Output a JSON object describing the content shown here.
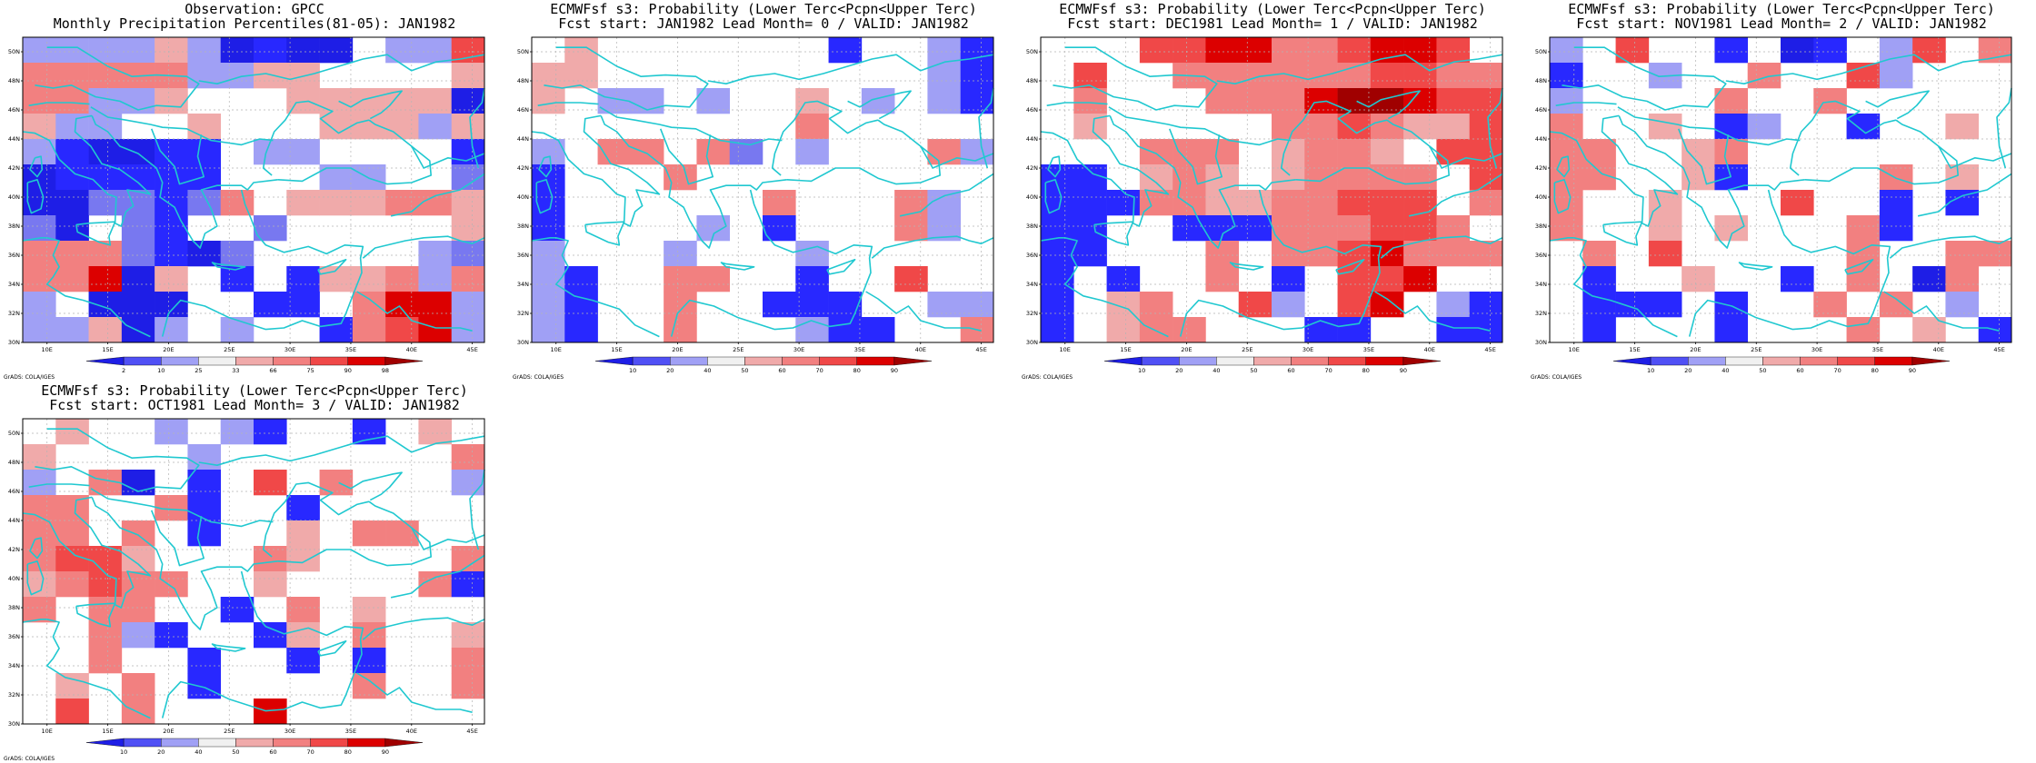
{
  "panels": [
    {
      "title_line1": "Observation: GPCC",
      "title_line2": "Monthly Precipitation Percentiles(81-05): JAN1982",
      "legend": [
        "2",
        "10",
        "25",
        "33",
        "66",
        "75",
        "90",
        "98"
      ],
      "grid": [
        "WWWW3WB1BB.WW5",
        "44444WW33....3",
        "44WW3...33333B",
        "3WW..3...333W3",
        "W1BB11.WW....1",
        "B11111...WW..2",
        "BB22124.333443",
        "2B.21..2.....3",
        "44421B2.....W2",
        "446B3.1.1334W4",
        "W.BBB..11.466W",
        "WW3BW.W..1456W"
      ]
    },
    {
      "title_line1": "ECMWFsf s3: Probability (Lower Terc<Pcpn<Upper Terc)",
      "title_line2": "Fcst start: JAN1982  Lead Month= 0 / VALID: JAN1982",
      "legend": [
        "10",
        "20",
        "40",
        "50",
        "60",
        "70",
        "80",
        "90"
      ],
      "grid": [
        ".3.......1..W1",
        "33..........W1",
        "3.WW.W..3.W.W1",
        "........4.....",
        "W.44.42.W...4W",
        "1...4.........",
        "1......4...4W.",
        "1....W.1...4W.",
        "W...W...W.....",
        "W1..44..1..5..",
        "W1..4..111..WW",
        "W1..4...W11..4"
      ]
    },
    {
      "title_line1": "ECMWFsf s3: Probability (Lower Terc<Pcpn<Upper Terc)",
      "title_line2": "Fcst start: DEC1981  Lead Month= 1 / VALID: JAN1982",
      "legend": [
        "10",
        "20",
        "40",
        "50",
        "60",
        "70",
        "80",
        "90"
      ],
      "grid": [
        "...5566445665.",
        ".5..4444445544",
        ".4...444677655",
        ".3.....4454335",
        "...444.3443.55",
        "11.343.34444.5",
        "111443344555.4",
        "11..111444554.",
        "11...4.4456444",
        "1.1..4.1.556..",
        "1.34..5W.56.W1",
        "1.344...11..11"
      ]
    },
    {
      "title_line1": "ECMWFsf s3: Probability (Lower Terc<Pcpn<Upper Terc)",
      "title_line2": "Fcst start: NOV1981  Lead Month= 2 / VALID: JAN1982",
      "legend": [
        "10",
        "20",
        "40",
        "50",
        "60",
        "70",
        "80",
        "90"
      ],
      "grid": [
        "W.5..1.B1.W5.4",
        "1..W..4..5W...",
        "W....4..4.....",
        "4..3.1W..1..3.",
        "44..34........",
        "44..31....4.3.",
        "4..3...5..1.1.",
        "4..3.3...41...",
        ".4.5.....4..44",
        ".1..3..1.4.B4.",
        ".111.1..4.4.W.",
        ".1...1...4.3.1"
      ]
    },
    {
      "title_line1": "ECMWFsf s3: Probability (Lower Terc<Pcpn<Upper Terc)",
      "title_line2": "Fcst start: OCT1981  Lead Month= 3 / VALID: JAN1982",
      "legend": [
        "10",
        "20",
        "40",
        "50",
        "60",
        "70",
        "80",
        "90"
      ],
      "grid": [
        ".3..W.W1..1.3.",
        "3....W.......4",
        "W.4B.1.5.4...W",
        "44..41..1.....",
        "44.4.1..3.44..",
        "4553...43....4",
        "34544..3....41",
        "4.44..1.4.3...",
        "..4W1..13.4..3",
        "..4..1..1.1..4",
        ".3.4.1....4..4",
        ".5.4...6......"
      ]
    }
  ]
}
